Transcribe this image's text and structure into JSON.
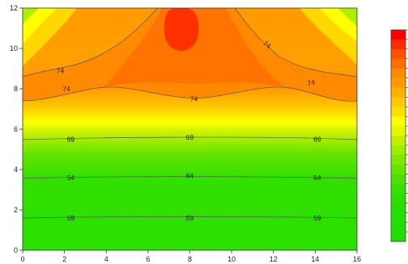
{
  "chart_data": {
    "type": "filled-contour",
    "title": "",
    "xlabel": "",
    "ylabel": "",
    "xlim": [
      0,
      16
    ],
    "ylim": [
      0,
      12
    ],
    "x_ticks": [
      0,
      2,
      4,
      6,
      8,
      10,
      12,
      14,
      16
    ],
    "y_ticks": [
      0,
      2,
      4,
      6,
      8,
      10,
      12
    ],
    "grid": false,
    "legend": "colorbar at right, tick labels not legible",
    "color_scale": [
      "#22e000",
      "#55e800",
      "#a8ec00",
      "#ffff00",
      "#ffcc00",
      "#ff9900",
      "#ff5000",
      "#ff1a00"
    ],
    "contour_line_values": [
      59,
      64,
      69,
      74
    ],
    "contour_labels": [
      {
        "text": "59",
        "x": 2.3,
        "y": 1.6
      },
      {
        "text": "59",
        "x": 8.0,
        "y": 1.6
      },
      {
        "text": "59",
        "x": 14.1,
        "y": 1.6
      },
      {
        "text": "64",
        "x": 2.3,
        "y": 3.6
      },
      {
        "text": "64",
        "x": 8.0,
        "y": 3.7
      },
      {
        "text": "64",
        "x": 14.1,
        "y": 3.6
      },
      {
        "text": "69",
        "x": 2.3,
        "y": 5.5
      },
      {
        "text": "69",
        "x": 8.0,
        "y": 5.6
      },
      {
        "text": "69",
        "x": 14.1,
        "y": 5.5
      },
      {
        "text": "74",
        "x": 2.1,
        "y": 8.0
      },
      {
        "text": "74",
        "x": 8.2,
        "y": 7.5
      },
      {
        "text": "74",
        "x": 13.8,
        "y": 8.3
      },
      {
        "text": "74",
        "x": 1.8,
        "y": 8.9
      },
      {
        "text": "74",
        "x": 11.7,
        "y": 10.2
      }
    ]
  }
}
